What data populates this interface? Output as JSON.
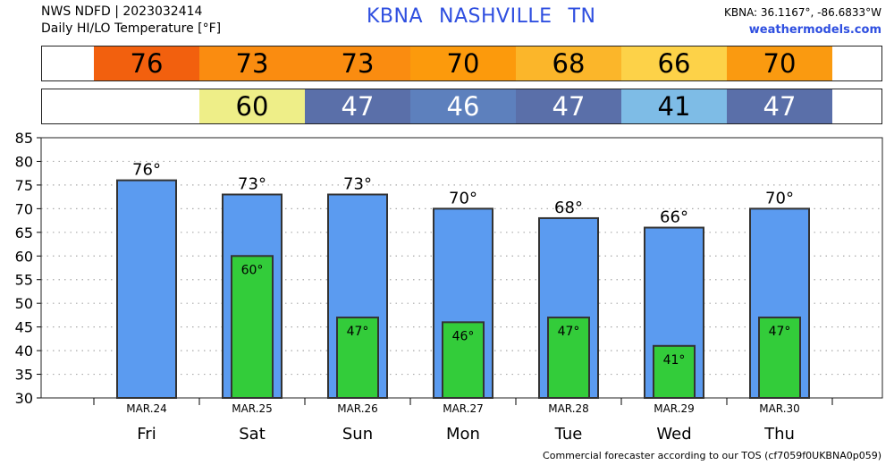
{
  "header": {
    "line1": "NWS NDFD | 2023032414",
    "line2": "Daily HI/LO Temperature [°F]",
    "station": "KBNA",
    "city": "NASHVILLE",
    "state": "TN",
    "coords": "KBNA: 36.1167°, -86.6833°W",
    "site": "weathermodels.com"
  },
  "colors": {
    "hi_bar": "#5b9bf0",
    "lo_bar": "#33cc3a",
    "bar_edge": "#333333",
    "hi_cells": [
      "#f2600e",
      "#fa8c10",
      "#fa8c10",
      "#fc9a0c",
      "#fbb62a",
      "#fdd248",
      "#fa9a10"
    ],
    "lo_cells": [
      "#eeee88",
      "#5a6fa9",
      "#5d80bd",
      "#5a6fa9",
      "#7ebce6",
      "#5a6fa9"
    ]
  },
  "hi_strip": [
    "76",
    "73",
    "73",
    "70",
    "68",
    "66",
    "70"
  ],
  "lo_strip": [
    "60",
    "47",
    "46",
    "47",
    "41",
    "47"
  ],
  "footnote": "Commercial forecaster according to our TOS (cf7059f0UKBNA0p059)",
  "chart_data": {
    "type": "bar",
    "categories": [
      "Fri",
      "Sat",
      "Sun",
      "Mon",
      "Tue",
      "Wed",
      "Thu"
    ],
    "dates": [
      "MAR.24",
      "MAR.25",
      "MAR.26",
      "MAR.27",
      "MAR.28",
      "MAR.29",
      "MAR.30"
    ],
    "series": [
      {
        "values": [
          76,
          73,
          73,
          70,
          68,
          66,
          70
        ]
      },
      {
        "values": [
          null,
          60,
          47,
          46,
          47,
          41,
          47
        ]
      }
    ],
    "ylim": [
      30,
      85
    ],
    "yticks": [
      30,
      35,
      40,
      45,
      50,
      55,
      60,
      65,
      70,
      75,
      80,
      85
    ],
    "grid": true,
    "labels": [
      "76°",
      "73°",
      "73°",
      "70°",
      "68°",
      "66°",
      "70°"
    ],
    "lo_labels": [
      "",
      "60°",
      "47°",
      "46°",
      "47°",
      "41°",
      "47°"
    ]
  }
}
